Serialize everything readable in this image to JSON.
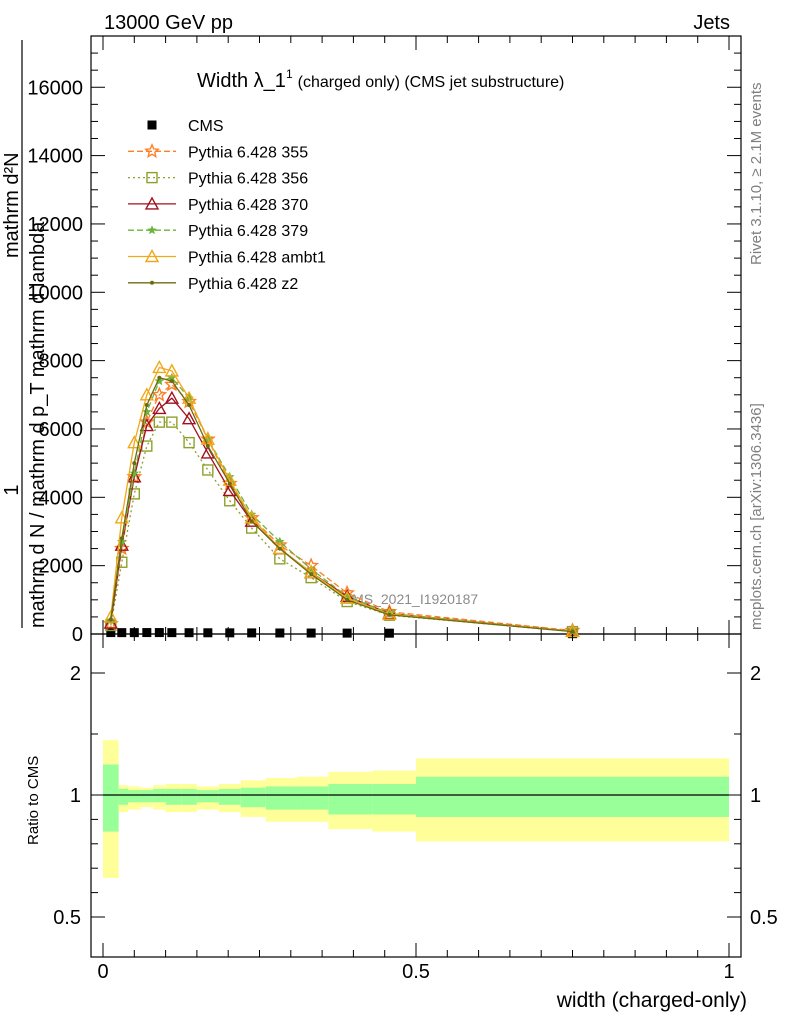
{
  "header": {
    "left": "13000 GeV pp",
    "right": "Jets"
  },
  "side": {
    "rivet": "Rivet 3.1.10, ≥ 2.1M events",
    "mcplots": "mcplots.cern.ch [arXiv:1306.3436]"
  },
  "plot_title": {
    "main": "Width λ_1",
    "sup": "1",
    "rest": "(charged only) (CMS jet substructure)"
  },
  "analysis_id": "CMS_2021_I1920187",
  "ylabel_top": {
    "numerator": "1",
    "denominator": "mathrm d N / mathrm d p_T mathrm d lambda",
    "numerator2": "mathrm d²N"
  },
  "ylabel_bottom": "Ratio to CMS",
  "xlabel": "width (charged-only)",
  "colors": {
    "p355": "#ff7f27",
    "p356": "#8fa02a",
    "p370": "#a01020",
    "p379": "#6db33f",
    "ambt1": "#f0a818",
    "z2": "#6b6b10",
    "band_inner": "#99ff99",
    "band_outer": "#ffff99"
  },
  "chart_data": [
    {
      "type": "line",
      "panel": "main",
      "ylim": [
        0,
        17500
      ],
      "xlim": [
        -0.02,
        1.0
      ],
      "yticks": [
        0,
        2000,
        4000,
        6000,
        8000,
        10000,
        12000,
        14000,
        16000
      ],
      "ytick_labels": [
        "0",
        "2000",
        "4000",
        "6000",
        "8000",
        "10000",
        "12000",
        "14000",
        "16000"
      ],
      "x": [
        0.0125,
        0.03,
        0.05,
        0.07,
        0.09,
        0.11,
        0.1375,
        0.1675,
        0.2025,
        0.2375,
        0.2825,
        0.3325,
        0.39,
        0.4575,
        0.75
      ],
      "series": [
        {
          "name": "CMS",
          "marker": "square",
          "values": [
            42,
            40,
            40,
            42,
            42,
            40,
            38,
            36,
            34,
            32,
            30,
            28,
            26,
            24,
            10
          ]
        },
        {
          "name": "Pythia 6.428 355",
          "marker": "star",
          "dash": "dash",
          "values": [
            300,
            2500,
            4600,
            6200,
            7000,
            7300,
            6800,
            5700,
            4400,
            3400,
            2600,
            2000,
            1200,
            650,
            100
          ]
        },
        {
          "name": "Pythia 6.428 356",
          "marker": "open-square",
          "dash": "dot",
          "values": [
            250,
            2100,
            4100,
            5500,
            6200,
            6200,
            5600,
            4800,
            3900,
            3100,
            2200,
            1650,
            950,
            550,
            70
          ]
        },
        {
          "name": "Pythia 6.428 370",
          "marker": "open-triangle",
          "dash": "solid",
          "values": [
            320,
            2600,
            4600,
            6100,
            6600,
            6900,
            6300,
            5300,
            4200,
            3300,
            2500,
            1800,
            1100,
            600,
            80
          ]
        },
        {
          "name": "Pythia 6.428 379",
          "marker": "star-small",
          "dash": "dash",
          "values": [
            400,
            2700,
            4700,
            6500,
            7400,
            7500,
            6900,
            5700,
            4600,
            3500,
            2700,
            1900,
            1100,
            600,
            80
          ]
        },
        {
          "name": "Pythia 6.428 ambt1",
          "marker": "open-triangle",
          "dash": "solid",
          "values": [
            500,
            3400,
            5600,
            7000,
            7800,
            7700,
            6900,
            5700,
            4500,
            3400,
            2500,
            1800,
            1050,
            580,
            80
          ]
        },
        {
          "name": "Pythia 6.428 z2",
          "marker": "dot",
          "dash": "solid",
          "values": [
            420,
            2800,
            5000,
            6700,
            7500,
            7400,
            6700,
            5500,
            4400,
            3300,
            2500,
            1750,
            1000,
            560,
            70
          ]
        }
      ]
    },
    {
      "type": "area",
      "panel": "ratio",
      "ylim": [
        0.35,
        2.25
      ],
      "xlim": [
        -0.02,
        1.0
      ],
      "yticks": [
        0.5,
        1,
        2
      ],
      "ytick_labels": [
        "0.5",
        "1",
        "2"
      ],
      "xticks": [
        0,
        0.5,
        1
      ],
      "xtick_labels": [
        "0",
        "0.5",
        "1"
      ],
      "bins": [
        0,
        0.025,
        0.04,
        0.06,
        0.08,
        0.1,
        0.125,
        0.15,
        0.185,
        0.22,
        0.26,
        0.31,
        0.36,
        0.43,
        0.5,
        1.0
      ],
      "inner_lo": [
        0.85,
        0.96,
        0.97,
        0.97,
        0.97,
        0.96,
        0.96,
        0.97,
        0.96,
        0.95,
        0.94,
        0.94,
        0.92,
        0.92,
        0.91
      ],
      "inner_hi": [
        1.25,
        1.05,
        1.04,
        1.04,
        1.05,
        1.05,
        1.05,
        1.04,
        1.05,
        1.06,
        1.07,
        1.07,
        1.09,
        1.09,
        1.15
      ],
      "outer_lo": [
        0.66,
        0.93,
        0.94,
        0.95,
        0.94,
        0.93,
        0.93,
        0.94,
        0.93,
        0.91,
        0.89,
        0.89,
        0.86,
        0.85,
        0.81
      ],
      "outer_hi": [
        1.45,
        1.08,
        1.07,
        1.06,
        1.08,
        1.09,
        1.09,
        1.07,
        1.09,
        1.12,
        1.14,
        1.15,
        1.19,
        1.2,
        1.3
      ]
    }
  ]
}
